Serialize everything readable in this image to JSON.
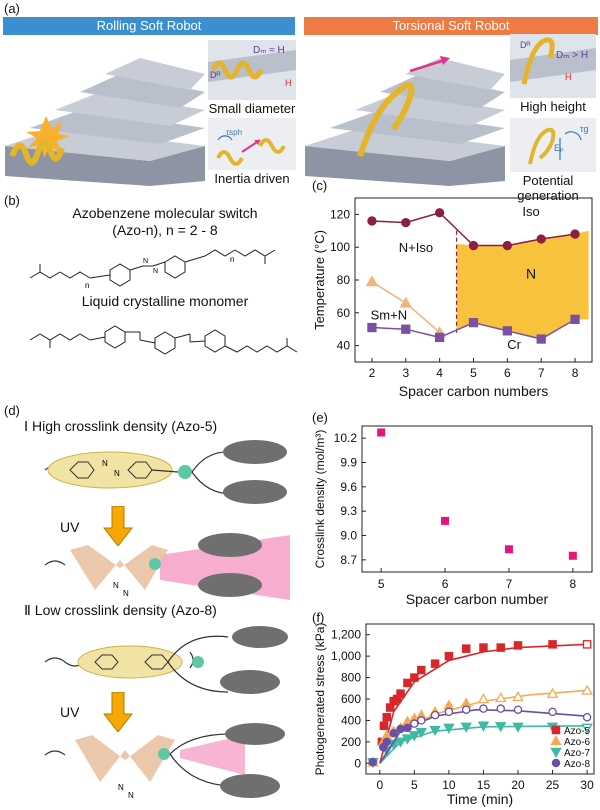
{
  "panel_labels": {
    "a": "(a)",
    "b": "(b)",
    "c": "(c)",
    "d": "(d)",
    "e": "(e)",
    "f": "(f)"
  },
  "panel_a": {
    "left_header": "Rolling Soft Robot",
    "right_header": "Torsional Soft Robot",
    "left_inset_top_caption": "Small diameter",
    "left_inset_bottom_caption": "Inertia driven",
    "right_inset_top_caption": "High height",
    "right_inset_bottom_caption": "Potential generation",
    "left_eq": "Dₘ ≈ H",
    "right_eq": "Dₘ > H",
    "dr": "Dᴿ",
    "h": "H",
    "tau_g": "τg",
    "e_p": "Eₚ",
    "tau_sph": "τsph",
    "colors": {
      "left_header": "#3b8fd1",
      "right_header": "#ee7a45",
      "ribbon": "#e2b52a",
      "stair": "#a8b0bf",
      "arrow": "#e0358a"
    }
  },
  "panel_b": {
    "title_line1": "Azobenzene molecular switch",
    "title_line2": "(Azo-n), n = 2 - 8",
    "monomer_caption": "Liquid crystalline monomer",
    "n_label": "n"
  },
  "panel_d": {
    "item1": "Ⅰ High crosslink density (Azo-5)",
    "item2": "Ⅱ Low crosslink density (Azo-8)",
    "uv1": "UV",
    "uv2": "UV",
    "nn": "N",
    "colors": {
      "azo_trans": "#f1e3a3",
      "azo_cis": "#e9c2a3",
      "sphere": "#6f6f6f",
      "node": "#5ec8a6",
      "arrow": "#f6a800",
      "light": "#f06aa8"
    }
  },
  "panel_c": {
    "xlabel": "Spacer carbon numbers",
    "ylabel": "Temperature (°C)",
    "regions": {
      "iso": "Iso",
      "niso": "N+Iso",
      "smn": "Sm+N",
      "n": "N",
      "cr": "Cr"
    }
  },
  "panel_e": {
    "xlabel": "Spacer carbon number",
    "ylabel": "Crosslink density (mol/m³)"
  },
  "panel_f": {
    "xlabel": "Time (min)",
    "ylabel": "Photogenerated stress (kPa)"
  },
  "chart_data": [
    {
      "id": "c",
      "type": "line",
      "x": [
        2,
        3,
        4,
        5,
        6,
        7,
        8
      ],
      "xlim": [
        1.5,
        8.5
      ],
      "ylim": [
        30,
        130
      ],
      "yticks": [
        40,
        60,
        80,
        100,
        120
      ],
      "xticks": [
        2,
        3,
        4,
        5,
        6,
        7,
        8
      ],
      "series": [
        {
          "values": [
            116,
            115,
            121,
            101,
            101,
            105,
            108
          ],
          "color": "#8c1e44",
          "marker": "circle"
        },
        {
          "values": [
            79,
            66,
            48,
            null,
            null,
            null,
            null
          ],
          "color": "#f2b27a",
          "marker": "triangle"
        },
        {
          "values": [
            51,
            50,
            45,
            54,
            49,
            44,
            56
          ],
          "color": "#7b51a3",
          "marker": "square"
        }
      ],
      "fill_color": "#f9c23c",
      "transition_x": 4.5
    },
    {
      "id": "e",
      "type": "scatter",
      "x": [
        5,
        6,
        7,
        8
      ],
      "values": [
        10.27,
        9.18,
        8.83,
        8.75
      ],
      "xlim": [
        4.7,
        8.3
      ],
      "ylim": [
        8.55,
        10.35
      ],
      "yticks": [
        8.7,
        9.0,
        9.3,
        9.6,
        9.9,
        10.2
      ],
      "xticks": [
        5,
        6,
        7,
        8
      ],
      "color": "#e6157a"
    },
    {
      "id": "f",
      "type": "scatter",
      "xlim": [
        -2,
        31
      ],
      "ylim": [
        -100,
        1300
      ],
      "xticks": [
        0,
        5,
        10,
        15,
        20,
        25,
        30
      ],
      "yticks": [
        0,
        200,
        400,
        600,
        800,
        1000,
        1200
      ],
      "ytick_labels": [
        "0",
        "200",
        "400",
        "600",
        "800",
        "1,000",
        "1,200"
      ],
      "series": [
        {
          "name": "Azo-5",
          "color": "#d8272b",
          "marker": "square",
          "x": [
            -1,
            0.3,
            0.6,
            1,
            1.5,
            2,
            2.5,
            3,
            4,
            5,
            6,
            8,
            10,
            12.5,
            15,
            17.5,
            20,
            25,
            30
          ],
          "values": [
            10,
            200,
            350,
            430,
            520,
            580,
            600,
            650,
            750,
            800,
            870,
            930,
            1000,
            1070,
            1080,
            1080,
            1100,
            1110,
            1110
          ],
          "fit": [
            [
              0,
              0
            ],
            [
              2,
              480
            ],
            [
              5,
              760
            ],
            [
              10,
              960
            ],
            [
              15,
              1040
            ],
            [
              20,
              1080
            ],
            [
              30,
              1110
            ]
          ],
          "hollow": [
            30
          ]
        },
        {
          "name": "Azo-6",
          "color": "#f6aa52",
          "marker": "triangle",
          "x": [
            -1,
            0.5,
            1,
            2,
            3,
            4,
            5,
            6,
            8,
            10,
            12.5,
            15,
            17.5,
            20,
            25,
            30
          ],
          "values": [
            10,
            200,
            260,
            300,
            330,
            390,
            420,
            450,
            480,
            540,
            560,
            600,
            610,
            620,
            650,
            680
          ],
          "fit": [
            [
              0,
              0
            ],
            [
              3,
              300
            ],
            [
              8,
              460
            ],
            [
              15,
              580
            ],
            [
              22,
              640
            ],
            [
              30,
              680
            ]
          ],
          "hollow": [
            15,
            17.5,
            20,
            25,
            30
          ]
        },
        {
          "name": "Azo-7",
          "color": "#3fb9a2",
          "marker": "tri-down",
          "x": [
            -1,
            1,
            2,
            3,
            4,
            5,
            6,
            8,
            10,
            12.5,
            15,
            17.5,
            20,
            25,
            30
          ],
          "values": [
            10,
            120,
            180,
            200,
            230,
            260,
            290,
            310,
            330,
            340,
            350,
            345,
            340,
            340,
            330
          ],
          "fit": [
            [
              0,
              0
            ],
            [
              3,
              200
            ],
            [
              8,
              300
            ],
            [
              15,
              340
            ],
            [
              30,
              350
            ]
          ],
          "hollow": [
            30
          ]
        },
        {
          "name": "Azo-8",
          "color": "#6c4ea7",
          "marker": "circle",
          "x": [
            -1,
            0.5,
            1,
            2,
            3,
            4,
            5,
            6,
            8,
            10,
            12.5,
            15,
            17.5,
            20,
            25,
            30
          ],
          "values": [
            10,
            150,
            200,
            280,
            320,
            330,
            370,
            400,
            450,
            480,
            500,
            510,
            510,
            500,
            480,
            430
          ],
          "fit": [
            [
              0,
              0
            ],
            [
              3,
              300
            ],
            [
              8,
              440
            ],
            [
              14,
              500
            ],
            [
              20,
              490
            ],
            [
              30,
              440
            ]
          ],
          "hollow": [
            5,
            6,
            8,
            10,
            12.5,
            15,
            17.5,
            20,
            25,
            30
          ]
        }
      ]
    }
  ]
}
